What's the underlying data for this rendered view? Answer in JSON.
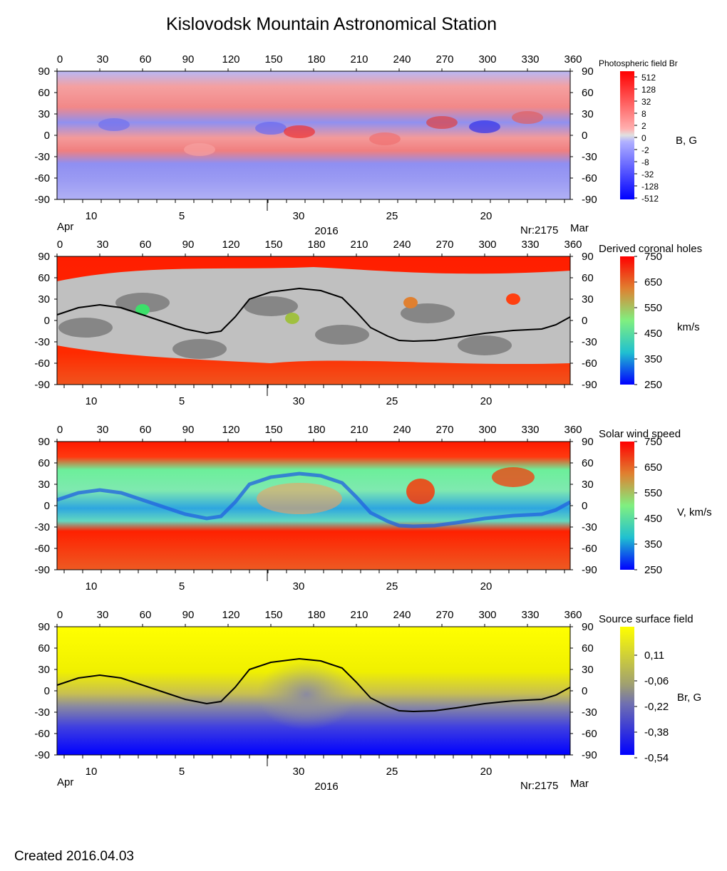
{
  "title": "Kislovodsk Mountain Astronomical Station",
  "created": "Created  2016.04.03",
  "chart_data": [
    {
      "type": "heatmap",
      "title": "Photospheric field Br",
      "colorbar_label": "B, G",
      "colorbar_ticks": [
        "512",
        "128",
        "32",
        "8",
        "2",
        "0",
        "-2",
        "-8",
        "-32",
        "-128",
        "-512"
      ],
      "x_ticks": [
        "0",
        "30",
        "60",
        "90",
        "120",
        "150",
        "180",
        "210",
        "240",
        "270",
        "300",
        "330",
        "360"
      ],
      "y_ticks": [
        "90",
        "60",
        "30",
        "0",
        "-30",
        "-60",
        "-90"
      ],
      "xlim": [
        0,
        360
      ],
      "ylim": [
        -90,
        90
      ],
      "date_ticks": [
        "10",
        "5",
        "30",
        "25",
        "20"
      ],
      "month_left": "Apr",
      "month_right": "Mar",
      "year": "2016",
      "rotation": "Nr:2175",
      "colors": {
        "positive": "#f48a8a",
        "negative": "#8d8df5"
      }
    },
    {
      "type": "heatmap",
      "title": "Derived coronal holes",
      "colorbar_label": "km/s",
      "colorbar_ticks": [
        "750",
        "650",
        "550",
        "450",
        "350",
        "250"
      ],
      "x_ticks": [
        "0",
        "30",
        "60",
        "90",
        "120",
        "150",
        "180",
        "210",
        "240",
        "270",
        "300",
        "330",
        "360"
      ],
      "y_ticks": [
        "90",
        "60",
        "30",
        "0",
        "-30",
        "-60",
        "-90"
      ],
      "xlim": [
        0,
        360
      ],
      "ylim": [
        -90,
        90
      ],
      "date_ticks": [
        "10",
        "5",
        "30",
        "25",
        "20"
      ],
      "neutral_line": [
        [
          0,
          8
        ],
        [
          15,
          18
        ],
        [
          30,
          22
        ],
        [
          45,
          18
        ],
        [
          60,
          8
        ],
        [
          75,
          -2
        ],
        [
          90,
          -12
        ],
        [
          105,
          -18
        ],
        [
          115,
          -15
        ],
        [
          125,
          5
        ],
        [
          135,
          30
        ],
        [
          150,
          40
        ],
        [
          170,
          45
        ],
        [
          185,
          42
        ],
        [
          200,
          32
        ],
        [
          210,
          12
        ],
        [
          220,
          -10
        ],
        [
          232,
          -22
        ],
        [
          240,
          -28
        ],
        [
          250,
          -29
        ],
        [
          265,
          -28
        ],
        [
          280,
          -24
        ],
        [
          300,
          -18
        ],
        [
          320,
          -14
        ],
        [
          340,
          -12
        ],
        [
          350,
          -6
        ],
        [
          360,
          5
        ]
      ],
      "colors": {
        "open_field": "#ff1e00",
        "hole_dark": "#808080",
        "hole_light": "#c0c0c0"
      }
    },
    {
      "type": "heatmap",
      "title": "Solar wind speed",
      "colorbar_label": "V, km/s",
      "colorbar_ticks": [
        "750",
        "650",
        "550",
        "450",
        "350",
        "250"
      ],
      "x_ticks": [
        "0",
        "30",
        "60",
        "90",
        "120",
        "150",
        "180",
        "210",
        "240",
        "270",
        "300",
        "330",
        "360"
      ],
      "y_ticks": [
        "90",
        "60",
        "30",
        "0",
        "-30",
        "-60",
        "-90"
      ],
      "xlim": [
        0,
        360
      ],
      "ylim": [
        -90,
        90
      ],
      "date_ticks": [
        "10",
        "5",
        "30",
        "25",
        "20"
      ],
      "colors": {
        "fast": "#ff1e00",
        "slow": "#1e6bff",
        "mid": "#7df58a"
      }
    },
    {
      "type": "heatmap",
      "title": "Source surface field",
      "colorbar_label": "Br, G",
      "colorbar_ticks": [
        "0,11",
        "-0,06",
        "-0,22",
        "-0,38",
        "-0,54"
      ],
      "x_ticks": [
        "0",
        "30",
        "60",
        "90",
        "120",
        "150",
        "180",
        "210",
        "240",
        "270",
        "300",
        "330",
        "360"
      ],
      "y_ticks": [
        "90",
        "60",
        "30",
        "0",
        "-30",
        "-60",
        "-90"
      ],
      "xlim": [
        0,
        360
      ],
      "ylim": [
        -90,
        90
      ],
      "date_ticks": [
        "10",
        "5",
        "30",
        "25",
        "20"
      ],
      "month_left": "Apr",
      "month_right": "Mar",
      "year": "2016",
      "rotation": "Nr:2175",
      "neutral_line": [
        [
          0,
          8
        ],
        [
          15,
          18
        ],
        [
          30,
          22
        ],
        [
          45,
          18
        ],
        [
          60,
          8
        ],
        [
          75,
          -2
        ],
        [
          90,
          -12
        ],
        [
          105,
          -18
        ],
        [
          115,
          -15
        ],
        [
          125,
          5
        ],
        [
          135,
          30
        ],
        [
          150,
          40
        ],
        [
          170,
          45
        ],
        [
          185,
          42
        ],
        [
          200,
          32
        ],
        [
          210,
          12
        ],
        [
          220,
          -10
        ],
        [
          232,
          -22
        ],
        [
          240,
          -28
        ],
        [
          250,
          -29
        ],
        [
          265,
          -28
        ],
        [
          280,
          -24
        ],
        [
          300,
          -18
        ],
        [
          320,
          -14
        ],
        [
          340,
          -12
        ],
        [
          350,
          -6
        ],
        [
          360,
          5
        ]
      ],
      "colors": {
        "positive": "#ffff00",
        "negative": "#0000ff",
        "neutral": "#8080a0"
      }
    }
  ]
}
